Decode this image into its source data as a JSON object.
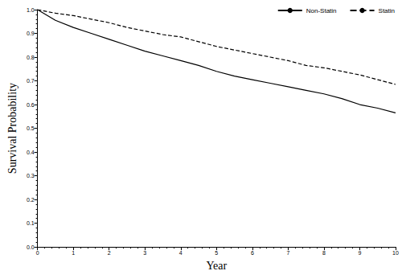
{
  "chart_data": {
    "type": "line",
    "x_label": "Year",
    "y_label": "Survival Probability",
    "x": [
      0,
      0.5,
      1,
      1.5,
      2,
      2.5,
      3,
      3.5,
      4,
      4.5,
      5,
      5.5,
      6,
      6.5,
      7,
      7.5,
      8,
      8.5,
      9,
      9.5,
      10
    ],
    "series": [
      {
        "name": "Non-Statin",
        "color": "#000000",
        "line_style": "solid",
        "values": [
          1.0,
          0.955,
          0.925,
          0.9,
          0.875,
          0.85,
          0.825,
          0.805,
          0.785,
          0.765,
          0.74,
          0.72,
          0.705,
          0.69,
          0.675,
          0.66,
          0.645,
          0.625,
          0.6,
          0.585,
          0.565
        ]
      },
      {
        "name": "Statin",
        "color": "#000000",
        "line_style": "dashed",
        "values": [
          1.0,
          0.985,
          0.975,
          0.96,
          0.945,
          0.925,
          0.91,
          0.895,
          0.885,
          0.865,
          0.845,
          0.83,
          0.815,
          0.8,
          0.785,
          0.765,
          0.755,
          0.74,
          0.725,
          0.705,
          0.685
        ]
      }
    ],
    "xlim": [
      0,
      10
    ],
    "xticks": [
      0,
      1,
      2,
      3,
      4,
      5,
      6,
      7,
      8,
      9,
      10
    ],
    "ylim": [
      0,
      1
    ],
    "yticks": [
      {
        "value": 0,
        "label": "0.0"
      },
      0.1,
      0.2,
      0.3,
      0.4,
      0.5,
      0.6,
      0.7,
      0.8,
      0.9,
      {
        "value": 1,
        "label": "1.0"
      }
    ],
    "grid": false,
    "legend": "top-right"
  }
}
